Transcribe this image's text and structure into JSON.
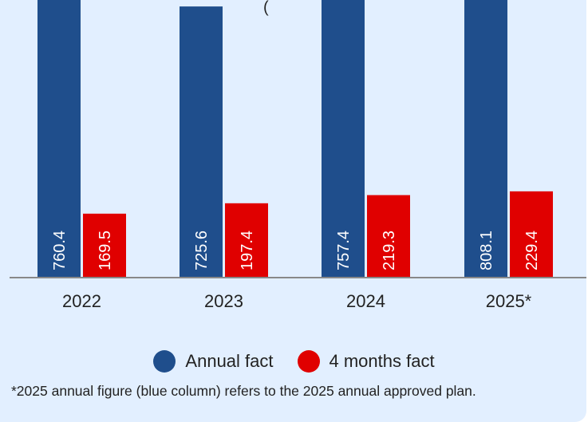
{
  "chart_data": {
    "type": "bar",
    "title_fragment": "(",
    "title_fragment_end": ")",
    "categories": [
      "2022",
      "2023",
      "2024",
      "2025*"
    ],
    "series": [
      {
        "name": "Annual fact",
        "color": "#1f4e8c",
        "values": [
          760.4,
          725.6,
          757.4,
          808.1
        ]
      },
      {
        "name": "4 months fact",
        "color": "#e00000",
        "values": [
          169.5,
          197.4,
          219.3,
          229.4
        ]
      }
    ],
    "ylim": [
      0,
      850
    ],
    "grid": false,
    "legend_position": "bottom-center"
  },
  "footnote": "*2025 annual figure (blue column) refers to the 2025 annual approved plan."
}
